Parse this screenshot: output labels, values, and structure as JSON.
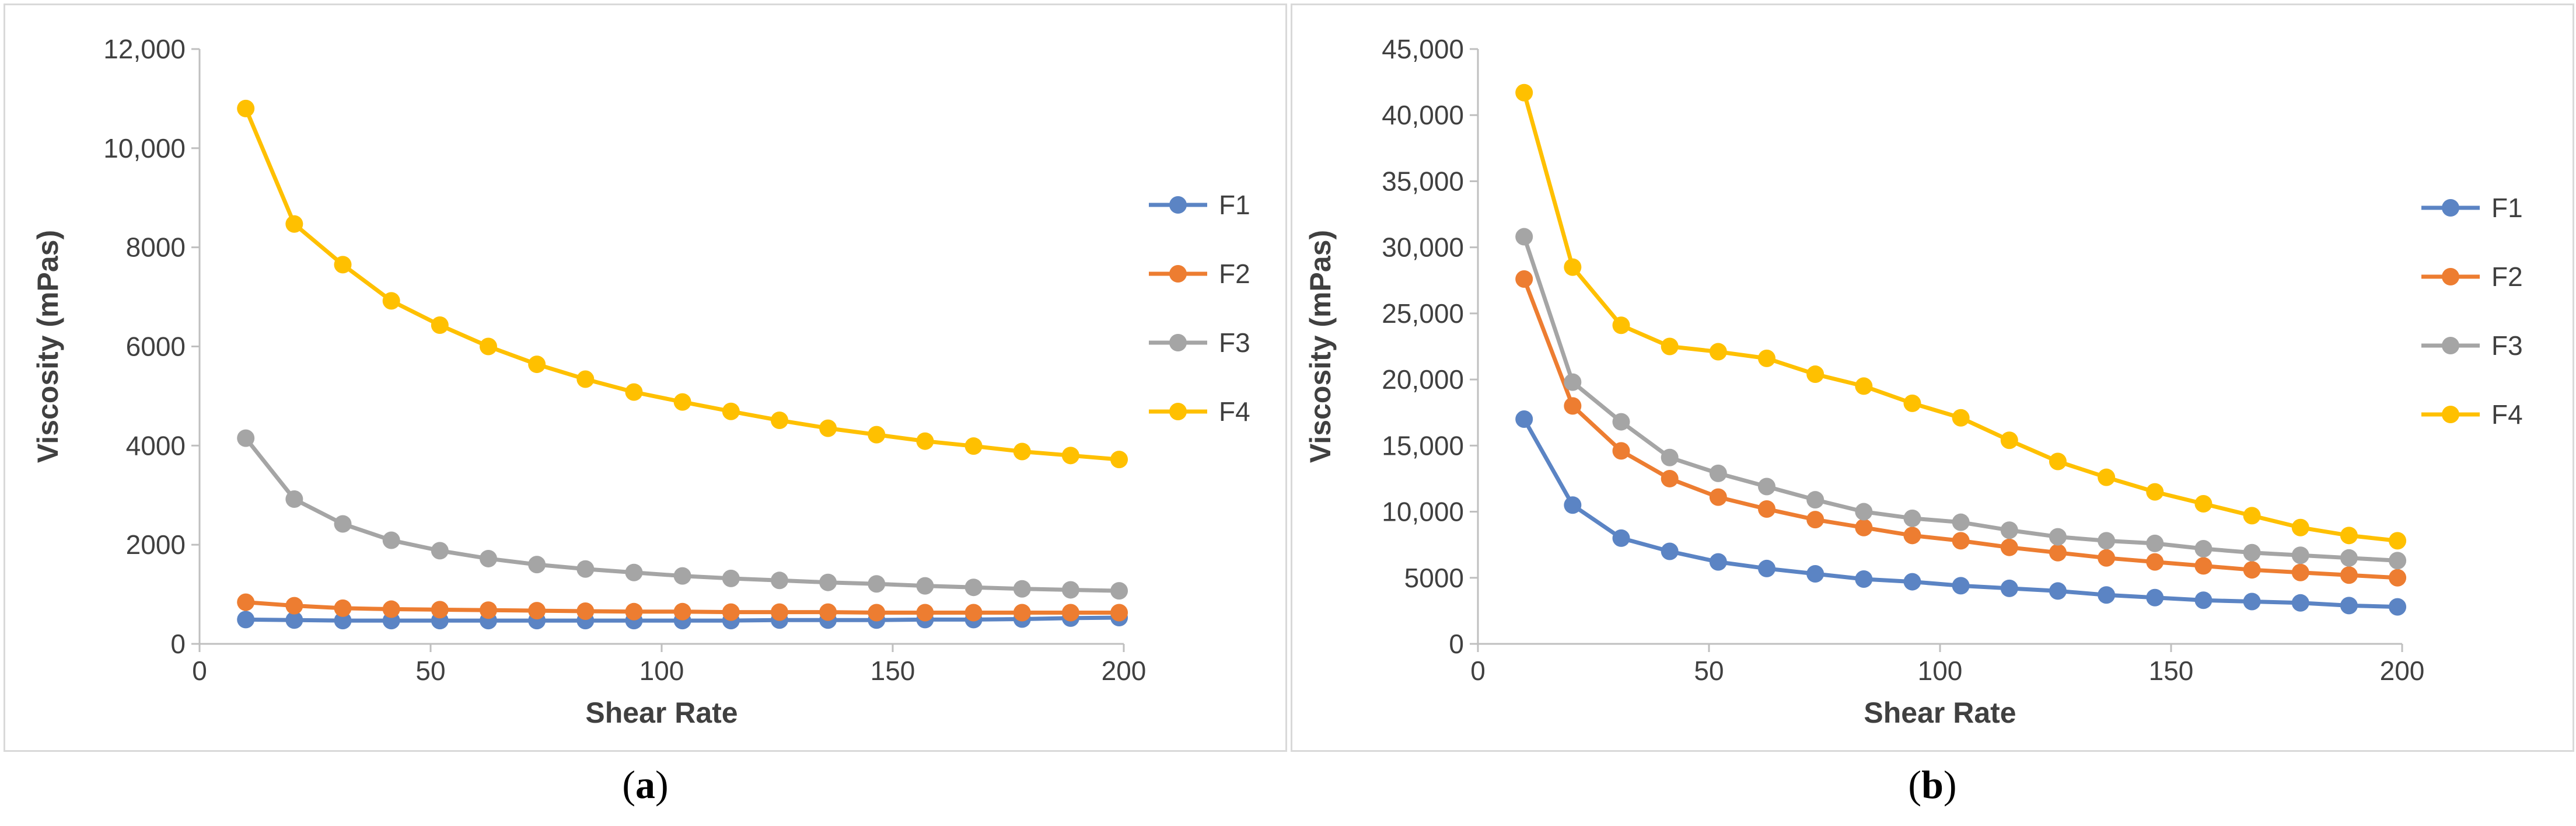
{
  "chart_data": [
    {
      "id": "a",
      "type": "line",
      "caption": "a",
      "xlabel": "Shear Rate",
      "ylabel": "Viscosity (mPas)",
      "xlim": [
        0,
        200
      ],
      "ylim": [
        0,
        12000
      ],
      "x_ticks": [
        0,
        50,
        100,
        150,
        200
      ],
      "x_tick_labels": [
        "0",
        "50",
        "100",
        "150",
        "200"
      ],
      "y_ticks": [
        0,
        2000,
        4000,
        6000,
        8000,
        10000,
        12000
      ],
      "y_tick_labels": [
        "0",
        "2000",
        "4000",
        "6000",
        "8000",
        "10,000",
        "12,000"
      ],
      "grid": false,
      "legend_position": "right",
      "x": [
        10,
        20.5,
        31,
        41.5,
        52,
        62.5,
        73,
        83.5,
        94,
        104.5,
        115,
        125.5,
        136,
        146.5,
        157,
        167.5,
        178,
        188.5,
        199
      ],
      "series": [
        {
          "name": "F1",
          "color": "#5b84c4",
          "values": [
            490,
            480,
            470,
            470,
            470,
            470,
            470,
            470,
            470,
            470,
            470,
            480,
            480,
            480,
            490,
            490,
            500,
            520,
            530
          ]
        },
        {
          "name": "F2",
          "color": "#ed7d31",
          "values": [
            840,
            770,
            720,
            700,
            690,
            680,
            670,
            660,
            650,
            650,
            640,
            640,
            640,
            630,
            630,
            630,
            630,
            630,
            630
          ]
        },
        {
          "name": "F3",
          "color": "#a5a5a5",
          "values": [
            4150,
            2920,
            2420,
            2090,
            1880,
            1720,
            1600,
            1510,
            1440,
            1370,
            1320,
            1280,
            1240,
            1210,
            1170,
            1140,
            1110,
            1090,
            1070
          ]
        },
        {
          "name": "F4",
          "color": "#ffc000",
          "values": [
            10800,
            8470,
            7650,
            6920,
            6430,
            6000,
            5640,
            5340,
            5080,
            4880,
            4690,
            4510,
            4350,
            4220,
            4090,
            3990,
            3880,
            3800,
            3720
          ]
        }
      ]
    },
    {
      "id": "b",
      "type": "line",
      "caption": "b",
      "xlabel": "Shear Rate",
      "ylabel": "Viscosity (mPas)",
      "xlim": [
        0,
        200
      ],
      "ylim": [
        0,
        45000
      ],
      "x_ticks": [
        0,
        50,
        100,
        150,
        200
      ],
      "x_tick_labels": [
        "0",
        "50",
        "100",
        "150",
        "200"
      ],
      "y_ticks": [
        0,
        5000,
        10000,
        15000,
        20000,
        25000,
        30000,
        35000,
        40000,
        45000
      ],
      "y_tick_labels": [
        "0",
        "5000",
        "10,000",
        "15,000",
        "20,000",
        "25,000",
        "30,000",
        "35,000",
        "40,000",
        "45,000"
      ],
      "grid": false,
      "legend_position": "right",
      "x": [
        10,
        20.5,
        31,
        41.5,
        52,
        62.5,
        73,
        83.5,
        94,
        104.5,
        115,
        125.5,
        136,
        146.5,
        157,
        167.5,
        178,
        188.5,
        199
      ],
      "series": [
        {
          "name": "F1",
          "color": "#5b84c4",
          "values": [
            17000,
            10500,
            8000,
            7000,
            6200,
            5700,
            5300,
            4900,
            4700,
            4400,
            4200,
            4000,
            3700,
            3500,
            3300,
            3200,
            3100,
            2900,
            2800
          ]
        },
        {
          "name": "F2",
          "color": "#ed7d31",
          "values": [
            27600,
            18000,
            14600,
            12500,
            11100,
            10200,
            9400,
            8800,
            8200,
            7800,
            7300,
            6900,
            6500,
            6200,
            5900,
            5600,
            5400,
            5200,
            5000
          ]
        },
        {
          "name": "F3",
          "color": "#a5a5a5",
          "values": [
            30800,
            19800,
            16800,
            14100,
            12900,
            11900,
            10900,
            10000,
            9500,
            9200,
            8600,
            8100,
            7800,
            7600,
            7200,
            6900,
            6700,
            6500,
            6300
          ]
        },
        {
          "name": "F4",
          "color": "#ffc000",
          "values": [
            41700,
            28500,
            24100,
            22500,
            22100,
            21600,
            20400,
            19500,
            18200,
            17100,
            15400,
            13800,
            12600,
            11500,
            10600,
            9700,
            8800,
            8200,
            7800
          ]
        }
      ]
    }
  ]
}
